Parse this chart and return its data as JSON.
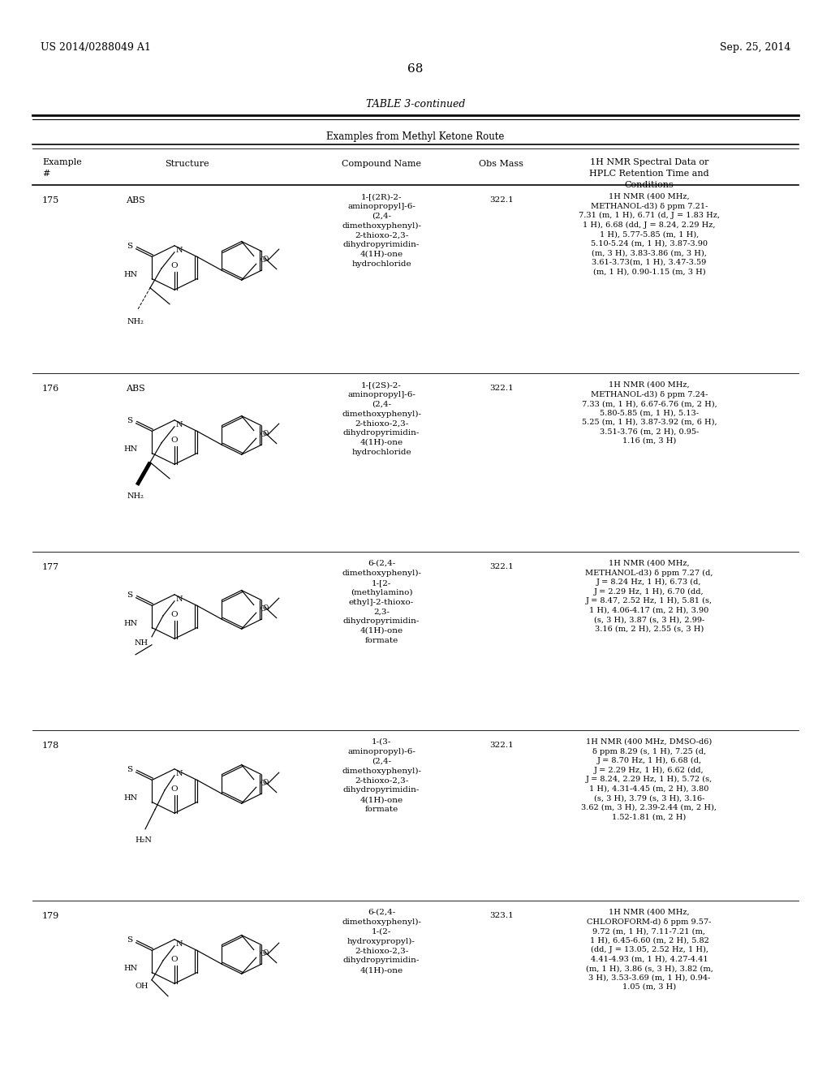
{
  "background_color": "#ffffff",
  "header_left": "US 2014/0288049 A1",
  "header_right": "Sep. 25, 2014",
  "page_number": "68",
  "table_title": "TABLE 3-continued",
  "table_subtitle": "Examples from Methyl Ketone Route",
  "rows": [
    {
      "example": "175",
      "abs_label": "ABS",
      "compound_name": "1-[(2R)-2-\naminopropyl]-6-\n(2,4-\ndimethoxyphenyl)-\n2-thioxo-2,3-\ndihydropyrimidin-\n4(1H)-one\nhydrochloride",
      "obs_mass": "322.1",
      "nmr": "1H NMR (400 MHz,\nMETHANOL-d3) δ ppm 7.21-\n7.31 (m, 1 H), 6.71 (d, J = 1.83 Hz,\n1 H), 6.68 (dd, J = 8.24, 2.29 Hz,\n1 H), 5.77-5.85 (m, 1 H),\n5.10-5.24 (m, 1 H), 3.87-3.90\n(m, 3 H), 3.83-3.86 (m, 3 H),\n3.61-3.73(m, 1 H), 3.47-3.59\n(m, 1 H), 0.90-1.15 (m, 3 H)"
    },
    {
      "example": "176",
      "abs_label": "ABS",
      "compound_name": "1-[(2S)-2-\naminopropyl]-6-\n(2,4-\ndimethoxyphenyl)-\n2-thioxo-2,3-\ndihydropyrimidin-\n4(1H)-one\nhydrochloride",
      "obs_mass": "322.1",
      "nmr": "1H NMR (400 MHz,\nMETHANOL-d3) δ ppm 7.24-\n7.33 (m, 1 H), 6.67-6.76 (m, 2 H),\n5.80-5.85 (m, 1 H), 5.13-\n5.25 (m, 1 H), 3.87-3.92 (m, 6 H),\n3.51-3.76 (m, 2 H), 0.95-\n1.16 (m, 3 H)"
    },
    {
      "example": "177",
      "abs_label": "",
      "compound_name": "6-(2,4-\ndimethoxyphenyl)-\n1-[2-\n(methylamino)\nethyl]-2-thioxo-\n2,3-\ndihydropyrimidin-\n4(1H)-one\nformate",
      "obs_mass": "322.1",
      "nmr": "1H NMR (400 MHz,\nMETHANOL-d3) δ ppm 7.27 (d,\nJ = 8.24 Hz, 1 H), 6.73 (d,\nJ = 2.29 Hz, 1 H), 6.70 (dd,\nJ = 8.47, 2.52 Hz, 1 H), 5.81 (s,\n1 H), 4.06-4.17 (m, 2 H), 3.90\n(s, 3 H), 3.87 (s, 3 H), 2.99-\n3.16 (m, 2 H), 2.55 (s, 3 H)"
    },
    {
      "example": "178",
      "abs_label": "",
      "compound_name": "1-(3-\naminopropyl)-6-\n(2,4-\ndimethoxyphenyl)-\n2-thioxo-2,3-\ndihydropyrimidin-\n4(1H)-one\nformate",
      "obs_mass": "322.1",
      "nmr": "1H NMR (400 MHz, DMSO-d6)\nδ ppm 8.29 (s, 1 H), 7.25 (d,\nJ = 8.70 Hz, 1 H), 6.68 (d,\nJ = 2.29 Hz, 1 H), 6.62 (dd,\nJ = 8.24, 2.29 Hz, 1 H), 5.72 (s,\n1 H), 4.31-4.45 (m, 2 H), 3.80\n(s, 3 H), 3.79 (s, 3 H), 3.16-\n3.62 (m, 3 H), 2.39-2.44 (m, 2 H),\n1.52-1.81 (m, 2 H)"
    },
    {
      "example": "179",
      "abs_label": "",
      "compound_name": "6-(2,4-\ndimethoxyphenyl)-\n1-(2-\nhydroxypropyl)-\n2-thioxo-2,3-\ndihydropyrimidin-\n4(1H)-one",
      "obs_mass": "323.1",
      "nmr": "1H NMR (400 MHz,\nCHLOROFORM-d) δ ppm 9.57-\n9.72 (m, 1 H), 7.11-7.21 (m,\n1 H), 6.45-6.60 (m, 2 H), 5.82\n(dd, J = 13.05, 2.52 Hz, 1 H),\n4.41-4.93 (m, 1 H), 4.27-4.41\n(m, 1 H), 3.86 (s, 3 H), 3.82 (m,\n3 H), 3.53-3.69 (m, 1 H), 0.94-\n1.05 (m, 3 H)"
    }
  ]
}
